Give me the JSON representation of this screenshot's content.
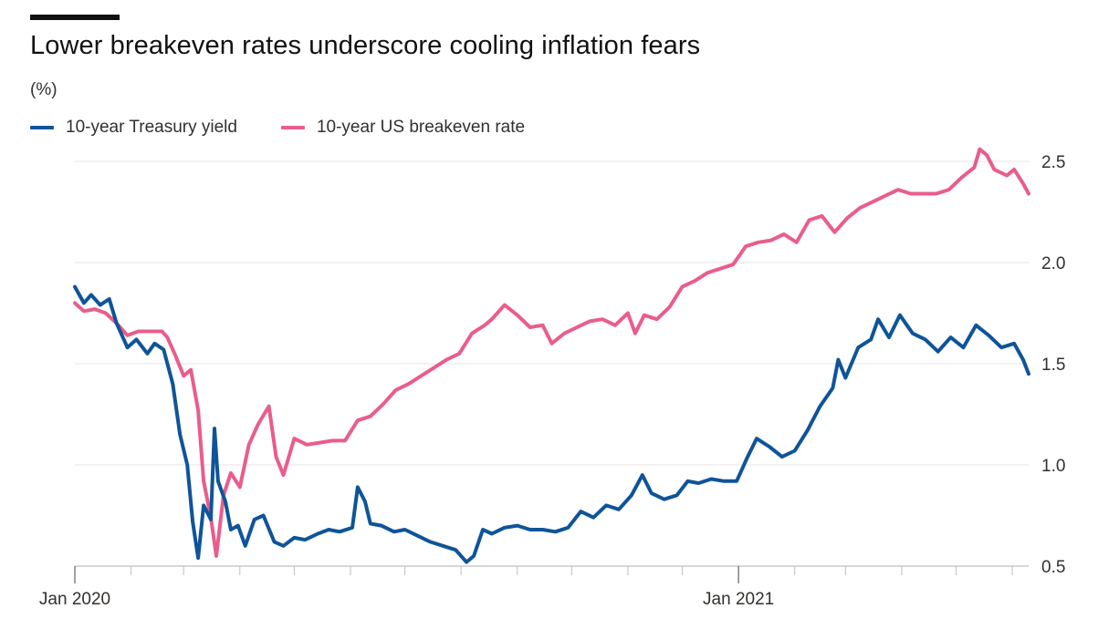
{
  "chart_data": {
    "type": "line",
    "title": "Lower breakeven rates underscore cooling inflation fears",
    "unit_label": "(%)",
    "x_range": [
      "2020-01-01",
      "2021-06-10"
    ],
    "ylim": [
      0.5,
      2.6
    ],
    "y_ticks": [
      0.5,
      1.0,
      1.5,
      2.0,
      2.5
    ],
    "y_tick_labels": [
      "0.5",
      "1.0",
      "1.5",
      "2.0",
      "2.5"
    ],
    "x_ticks": [
      {
        "date": "2020-01-01",
        "label": "Jan 2020"
      },
      {
        "date": "2021-01-01",
        "label": "Jan 2021"
      }
    ],
    "x_minor_ticks": [
      "2020-02-01",
      "2020-03-01",
      "2020-04-01",
      "2020-05-01",
      "2020-06-01",
      "2020-07-01",
      "2020-08-01",
      "2020-09-01",
      "2020-10-01",
      "2020-11-01",
      "2020-12-01",
      "2021-02-01",
      "2021-03-01",
      "2021-04-01",
      "2021-05-01",
      "2021-06-01"
    ],
    "grid": true,
    "y_axis_side": "right",
    "legend_position": "top-left",
    "series": [
      {
        "name": "10-year Treasury yield",
        "color": "#0f5499",
        "points": [
          [
            "2020-01-01",
            1.88
          ],
          [
            "2020-01-06",
            1.8
          ],
          [
            "2020-01-10",
            1.84
          ],
          [
            "2020-01-15",
            1.79
          ],
          [
            "2020-01-20",
            1.82
          ],
          [
            "2020-01-24",
            1.7
          ],
          [
            "2020-01-30",
            1.58
          ],
          [
            "2020-02-04",
            1.62
          ],
          [
            "2020-02-10",
            1.55
          ],
          [
            "2020-02-14",
            1.6
          ],
          [
            "2020-02-19",
            1.57
          ],
          [
            "2020-02-24",
            1.4
          ],
          [
            "2020-02-28",
            1.15
          ],
          [
            "2020-03-03",
            1.0
          ],
          [
            "2020-03-06",
            0.72
          ],
          [
            "2020-03-09",
            0.54
          ],
          [
            "2020-03-12",
            0.8
          ],
          [
            "2020-03-16",
            0.73
          ],
          [
            "2020-03-18",
            1.18
          ],
          [
            "2020-03-20",
            0.92
          ],
          [
            "2020-03-24",
            0.82
          ],
          [
            "2020-03-27",
            0.68
          ],
          [
            "2020-03-31",
            0.7
          ],
          [
            "2020-04-04",
            0.6
          ],
          [
            "2020-04-09",
            0.73
          ],
          [
            "2020-04-14",
            0.75
          ],
          [
            "2020-04-20",
            0.62
          ],
          [
            "2020-04-25",
            0.6
          ],
          [
            "2020-05-01",
            0.64
          ],
          [
            "2020-05-07",
            0.63
          ],
          [
            "2020-05-14",
            0.66
          ],
          [
            "2020-05-20",
            0.68
          ],
          [
            "2020-05-26",
            0.67
          ],
          [
            "2020-06-02",
            0.69
          ],
          [
            "2020-06-05",
            0.89
          ],
          [
            "2020-06-09",
            0.82
          ],
          [
            "2020-06-12",
            0.71
          ],
          [
            "2020-06-18",
            0.7
          ],
          [
            "2020-06-25",
            0.67
          ],
          [
            "2020-07-01",
            0.68
          ],
          [
            "2020-07-08",
            0.65
          ],
          [
            "2020-07-15",
            0.62
          ],
          [
            "2020-07-22",
            0.6
          ],
          [
            "2020-07-29",
            0.58
          ],
          [
            "2020-08-04",
            0.52
          ],
          [
            "2020-08-08",
            0.55
          ],
          [
            "2020-08-13",
            0.68
          ],
          [
            "2020-08-18",
            0.66
          ],
          [
            "2020-08-25",
            0.69
          ],
          [
            "2020-09-01",
            0.7
          ],
          [
            "2020-09-08",
            0.68
          ],
          [
            "2020-09-15",
            0.68
          ],
          [
            "2020-09-22",
            0.67
          ],
          [
            "2020-09-29",
            0.69
          ],
          [
            "2020-10-06",
            0.77
          ],
          [
            "2020-10-13",
            0.74
          ],
          [
            "2020-10-20",
            0.8
          ],
          [
            "2020-10-27",
            0.78
          ],
          [
            "2020-11-03",
            0.85
          ],
          [
            "2020-11-09",
            0.95
          ],
          [
            "2020-11-14",
            0.86
          ],
          [
            "2020-11-21",
            0.83
          ],
          [
            "2020-11-28",
            0.85
          ],
          [
            "2020-12-04",
            0.92
          ],
          [
            "2020-12-10",
            0.91
          ],
          [
            "2020-12-17",
            0.93
          ],
          [
            "2020-12-24",
            0.92
          ],
          [
            "2020-12-31",
            0.92
          ],
          [
            "2021-01-06",
            1.04
          ],
          [
            "2021-01-11",
            1.13
          ],
          [
            "2021-01-18",
            1.09
          ],
          [
            "2021-01-25",
            1.04
          ],
          [
            "2021-02-01",
            1.07
          ],
          [
            "2021-02-08",
            1.17
          ],
          [
            "2021-02-15",
            1.29
          ],
          [
            "2021-02-22",
            1.38
          ],
          [
            "2021-02-25",
            1.52
          ],
          [
            "2021-03-01",
            1.43
          ],
          [
            "2021-03-08",
            1.58
          ],
          [
            "2021-03-15",
            1.62
          ],
          [
            "2021-03-19",
            1.72
          ],
          [
            "2021-03-25",
            1.63
          ],
          [
            "2021-03-31",
            1.74
          ],
          [
            "2021-04-07",
            1.65
          ],
          [
            "2021-04-14",
            1.62
          ],
          [
            "2021-04-21",
            1.56
          ],
          [
            "2021-04-28",
            1.63
          ],
          [
            "2021-05-05",
            1.58
          ],
          [
            "2021-05-12",
            1.69
          ],
          [
            "2021-05-19",
            1.64
          ],
          [
            "2021-05-26",
            1.58
          ],
          [
            "2021-06-02",
            1.6
          ],
          [
            "2021-06-07",
            1.52
          ],
          [
            "2021-06-10",
            1.45
          ]
        ]
      },
      {
        "name": "10-year US breakeven rate",
        "color": "#e95d8c",
        "points": [
          [
            "2020-01-01",
            1.8
          ],
          [
            "2020-01-06",
            1.76
          ],
          [
            "2020-01-12",
            1.77
          ],
          [
            "2020-01-18",
            1.75
          ],
          [
            "2020-01-24",
            1.7
          ],
          [
            "2020-01-30",
            1.64
          ],
          [
            "2020-02-05",
            1.66
          ],
          [
            "2020-02-12",
            1.66
          ],
          [
            "2020-02-18",
            1.66
          ],
          [
            "2020-02-21",
            1.63
          ],
          [
            "2020-02-25",
            1.55
          ],
          [
            "2020-03-01",
            1.44
          ],
          [
            "2020-03-05",
            1.47
          ],
          [
            "2020-03-09",
            1.27
          ],
          [
            "2020-03-12",
            0.92
          ],
          [
            "2020-03-16",
            0.74
          ],
          [
            "2020-03-19",
            0.55
          ],
          [
            "2020-03-23",
            0.85
          ],
          [
            "2020-03-27",
            0.96
          ],
          [
            "2020-04-01",
            0.89
          ],
          [
            "2020-04-06",
            1.1
          ],
          [
            "2020-04-11",
            1.2
          ],
          [
            "2020-04-17",
            1.29
          ],
          [
            "2020-04-21",
            1.04
          ],
          [
            "2020-04-25",
            0.95
          ],
          [
            "2020-05-01",
            1.13
          ],
          [
            "2020-05-08",
            1.1
          ],
          [
            "2020-05-15",
            1.11
          ],
          [
            "2020-05-22",
            1.12
          ],
          [
            "2020-05-29",
            1.12
          ],
          [
            "2020-06-05",
            1.22
          ],
          [
            "2020-06-12",
            1.24
          ],
          [
            "2020-06-19",
            1.3
          ],
          [
            "2020-06-26",
            1.37
          ],
          [
            "2020-07-03",
            1.4
          ],
          [
            "2020-07-10",
            1.44
          ],
          [
            "2020-07-17",
            1.48
          ],
          [
            "2020-07-24",
            1.52
          ],
          [
            "2020-07-31",
            1.55
          ],
          [
            "2020-08-07",
            1.65
          ],
          [
            "2020-08-14",
            1.69
          ],
          [
            "2020-08-18",
            1.72
          ],
          [
            "2020-08-25",
            1.79
          ],
          [
            "2020-09-01",
            1.74
          ],
          [
            "2020-09-08",
            1.68
          ],
          [
            "2020-09-15",
            1.69
          ],
          [
            "2020-09-20",
            1.6
          ],
          [
            "2020-09-27",
            1.65
          ],
          [
            "2020-10-04",
            1.68
          ],
          [
            "2020-10-11",
            1.71
          ],
          [
            "2020-10-18",
            1.72
          ],
          [
            "2020-10-25",
            1.69
          ],
          [
            "2020-11-01",
            1.75
          ],
          [
            "2020-11-05",
            1.65
          ],
          [
            "2020-11-10",
            1.74
          ],
          [
            "2020-11-17",
            1.72
          ],
          [
            "2020-11-24",
            1.78
          ],
          [
            "2020-12-01",
            1.88
          ],
          [
            "2020-12-08",
            1.91
          ],
          [
            "2020-12-15",
            1.95
          ],
          [
            "2020-12-22",
            1.97
          ],
          [
            "2020-12-29",
            1.99
          ],
          [
            "2021-01-05",
            2.08
          ],
          [
            "2021-01-12",
            2.1
          ],
          [
            "2021-01-19",
            2.11
          ],
          [
            "2021-01-26",
            2.14
          ],
          [
            "2021-02-02",
            2.1
          ],
          [
            "2021-02-09",
            2.21
          ],
          [
            "2021-02-16",
            2.23
          ],
          [
            "2021-02-23",
            2.15
          ],
          [
            "2021-03-02",
            2.22
          ],
          [
            "2021-03-09",
            2.27
          ],
          [
            "2021-03-16",
            2.3
          ],
          [
            "2021-03-23",
            2.33
          ],
          [
            "2021-03-30",
            2.36
          ],
          [
            "2021-04-06",
            2.34
          ],
          [
            "2021-04-13",
            2.34
          ],
          [
            "2021-04-20",
            2.34
          ],
          [
            "2021-04-27",
            2.36
          ],
          [
            "2021-05-04",
            2.42
          ],
          [
            "2021-05-11",
            2.47
          ],
          [
            "2021-05-14",
            2.56
          ],
          [
            "2021-05-18",
            2.53
          ],
          [
            "2021-05-22",
            2.46
          ],
          [
            "2021-05-29",
            2.43
          ],
          [
            "2021-06-02",
            2.46
          ],
          [
            "2021-06-07",
            2.39
          ],
          [
            "2021-06-10",
            2.34
          ]
        ]
      }
    ]
  }
}
